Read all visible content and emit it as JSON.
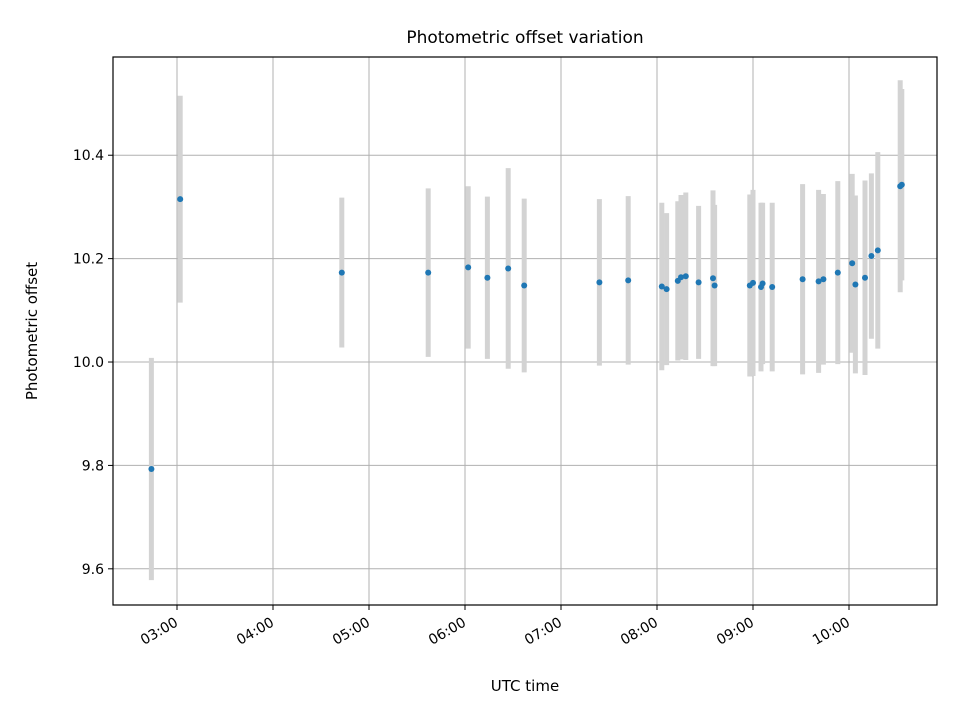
{
  "chart_data": {
    "type": "scatter",
    "title": "Photometric offset variation",
    "xlabel": "UTC time",
    "ylabel": "Photometric offset",
    "x_ticks": [
      "03:00",
      "04:00",
      "05:00",
      "06:00",
      "07:00",
      "08:00",
      "09:00",
      "10:00"
    ],
    "y_ticks": [
      "9.6",
      "9.8",
      "10.0",
      "10.2",
      "10.4"
    ],
    "xlim": [
      "02:20",
      "10:55"
    ],
    "ylim": [
      9.53,
      10.59
    ],
    "grid": true,
    "colors": {
      "point": "#1f77b4",
      "errorbar": "#d3d3d3",
      "grid": "#b0b0b0"
    },
    "points": [
      {
        "t": "02:44",
        "y": 9.793,
        "err": 0.215
      },
      {
        "t": "03:02",
        "y": 10.315,
        "err": 0.2
      },
      {
        "t": "04:43",
        "y": 10.173,
        "err": 0.145
      },
      {
        "t": "05:37",
        "y": 10.173,
        "err": 0.163
      },
      {
        "t": "06:02",
        "y": 10.183,
        "err": 0.157
      },
      {
        "t": "06:14",
        "y": 10.163,
        "err": 0.157
      },
      {
        "t": "06:27",
        "y": 10.181,
        "err": 0.194
      },
      {
        "t": "06:37",
        "y": 10.148,
        "err": 0.168
      },
      {
        "t": "07:24",
        "y": 10.154,
        "err": 0.161
      },
      {
        "t": "07:42",
        "y": 10.158,
        "err": 0.163
      },
      {
        "t": "08:03",
        "y": 10.146,
        "err": 0.162
      },
      {
        "t": "08:06",
        "y": 10.141,
        "err": 0.147
      },
      {
        "t": "08:13",
        "y": 10.157,
        "err": 0.154
      },
      {
        "t": "08:15",
        "y": 10.164,
        "err": 0.159
      },
      {
        "t": "08:18",
        "y": 10.166,
        "err": 0.162
      },
      {
        "t": "08:26",
        "y": 10.154,
        "err": 0.148
      },
      {
        "t": "08:35",
        "y": 10.162,
        "err": 0.17
      },
      {
        "t": "08:36",
        "y": 10.148,
        "err": 0.156
      },
      {
        "t": "08:58",
        "y": 10.148,
        "err": 0.176
      },
      {
        "t": "09:00",
        "y": 10.153,
        "err": 0.18
      },
      {
        "t": "09:05",
        "y": 10.145,
        "err": 0.163
      },
      {
        "t": "09:06",
        "y": 10.152,
        "err": 0.156
      },
      {
        "t": "09:12",
        "y": 10.145,
        "err": 0.163
      },
      {
        "t": "09:31",
        "y": 10.16,
        "err": 0.184
      },
      {
        "t": "09:41",
        "y": 10.156,
        "err": 0.177
      },
      {
        "t": "09:44",
        "y": 10.16,
        "err": 0.165
      },
      {
        "t": "09:53",
        "y": 10.173,
        "err": 0.177
      },
      {
        "t": "10:02",
        "y": 10.191,
        "err": 0.173
      },
      {
        "t": "10:04",
        "y": 10.15,
        "err": 0.172
      },
      {
        "t": "10:10",
        "y": 10.163,
        "err": 0.188
      },
      {
        "t": "10:14",
        "y": 10.205,
        "err": 0.16
      },
      {
        "t": "10:18",
        "y": 10.216,
        "err": 0.19
      },
      {
        "t": "10:32",
        "y": 10.34,
        "err": 0.205
      },
      {
        "t": "10:33",
        "y": 10.343,
        "err": 0.185
      }
    ]
  }
}
